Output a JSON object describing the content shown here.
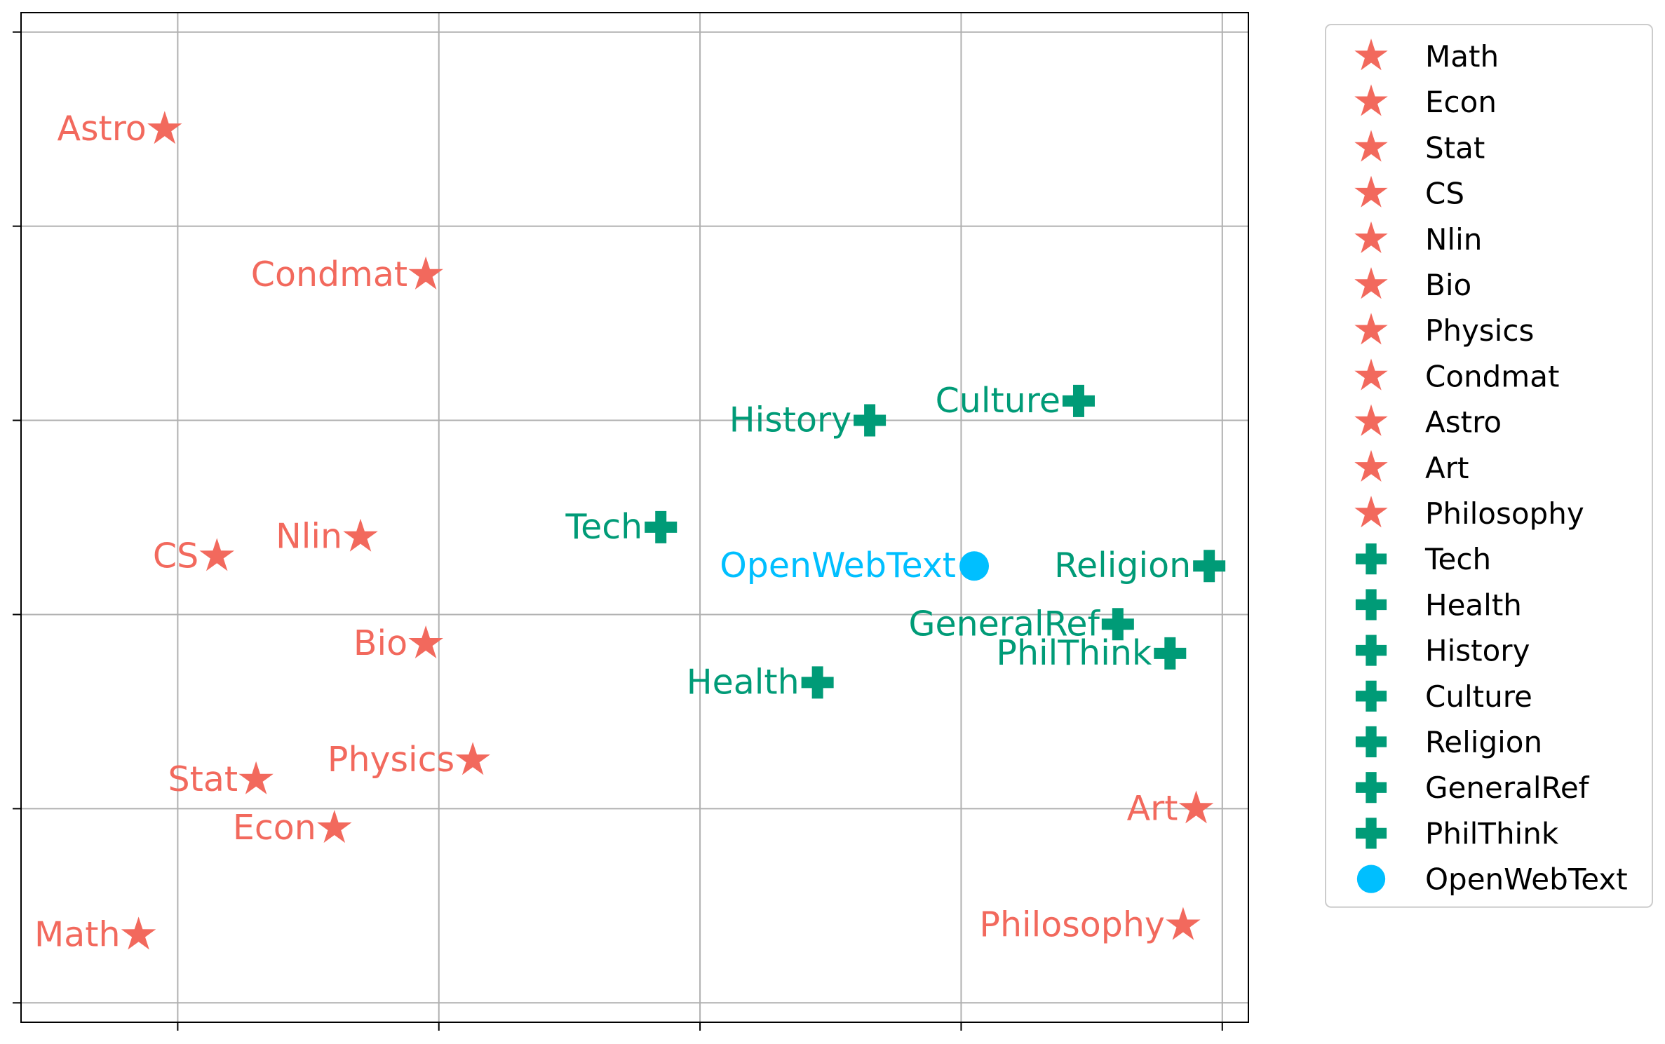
{
  "colors": {
    "academic": "#f2695d",
    "general": "#009b77",
    "baseline": "#00bfff",
    "grid": "#b0b0b0",
    "axis": "#000000"
  },
  "chart_data": {
    "type": "scatter",
    "title": "",
    "xlabel": "",
    "ylabel": "",
    "xlim": [
      -0.6,
      4.1
    ],
    "ylim": [
      -0.1,
      5.1
    ],
    "grid": true,
    "tick_labels_shown": false,
    "x_ticks": [
      0,
      1,
      2,
      3,
      4
    ],
    "y_ticks": [
      0,
      1,
      2,
      3,
      4,
      5
    ],
    "legend_position": "outside right, top",
    "series": [
      {
        "name": "Math",
        "marker": "star",
        "color": "#f2695d",
        "x": -0.15,
        "y": 0.35
      },
      {
        "name": "Econ",
        "marker": "star",
        "color": "#f2695d",
        "x": 0.6,
        "y": 0.9
      },
      {
        "name": "Stat",
        "marker": "star",
        "color": "#f2695d",
        "x": 0.3,
        "y": 1.15
      },
      {
        "name": "CS",
        "marker": "star",
        "color": "#f2695d",
        "x": 0.15,
        "y": 2.3
      },
      {
        "name": "Nlin",
        "marker": "star",
        "color": "#f2695d",
        "x": 0.7,
        "y": 2.4
      },
      {
        "name": "Bio",
        "marker": "star",
        "color": "#f2695d",
        "x": 0.95,
        "y": 1.85
      },
      {
        "name": "Physics",
        "marker": "star",
        "color": "#f2695d",
        "x": 1.13,
        "y": 1.25
      },
      {
        "name": "Condmat",
        "marker": "star",
        "color": "#f2695d",
        "x": 0.95,
        "y": 3.75
      },
      {
        "name": "Astro",
        "marker": "star",
        "color": "#f2695d",
        "x": -0.05,
        "y": 4.5
      },
      {
        "name": "Art",
        "marker": "star",
        "color": "#f2695d",
        "x": 3.9,
        "y": 1.0
      },
      {
        "name": "Philosophy",
        "marker": "star",
        "color": "#f2695d",
        "x": 3.85,
        "y": 0.4
      },
      {
        "name": "Tech",
        "marker": "plus",
        "color": "#009b77",
        "x": 1.85,
        "y": 2.45
      },
      {
        "name": "Health",
        "marker": "plus",
        "color": "#009b77",
        "x": 2.45,
        "y": 1.65
      },
      {
        "name": "History",
        "marker": "plus",
        "color": "#009b77",
        "x": 2.65,
        "y": 3.0
      },
      {
        "name": "Culture",
        "marker": "plus",
        "color": "#009b77",
        "x": 3.45,
        "y": 3.1
      },
      {
        "name": "Religion",
        "marker": "plus",
        "color": "#009b77",
        "x": 3.95,
        "y": 2.25
      },
      {
        "name": "GeneralRef",
        "marker": "plus",
        "color": "#009b77",
        "x": 3.6,
        "y": 1.95
      },
      {
        "name": "PhilThink",
        "marker": "plus",
        "color": "#009b77",
        "x": 3.8,
        "y": 1.8
      },
      {
        "name": "OpenWebText",
        "marker": "circle",
        "color": "#00bfff",
        "x": 3.05,
        "y": 2.25
      }
    ]
  }
}
